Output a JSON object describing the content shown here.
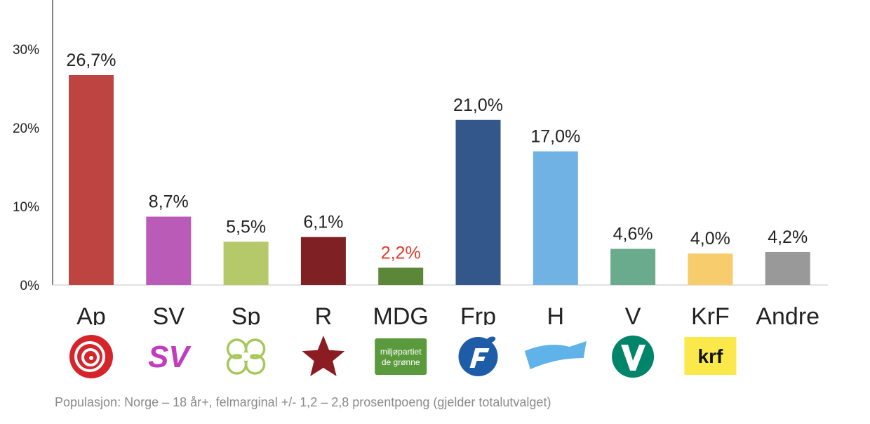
{
  "chart_data": {
    "type": "bar",
    "categories": [
      "Ap",
      "SV",
      "Sp",
      "R",
      "MDG",
      "Frp",
      "H",
      "V",
      "KrF",
      "Andre"
    ],
    "values": [
      26.7,
      8.7,
      5.5,
      6.1,
      2.2,
      21.0,
      17.0,
      4.6,
      4.0,
      4.2
    ],
    "value_labels": [
      "26,7%",
      "8,7%",
      "5,5%",
      "6,1%",
      "2,2%",
      "21,0%",
      "17,0%",
      "4,6%",
      "4,0%",
      "4,2%"
    ],
    "colors": [
      "#be4442",
      "#ba5bb7",
      "#b5c96a",
      "#7e2024",
      "#5d8738",
      "#33568b",
      "#6fb2e3",
      "#6aab8d",
      "#f6cc6c",
      "#999999"
    ],
    "label_colors": [
      "#222222",
      "#222222",
      "#222222",
      "#222222",
      "#e03b2c",
      "#222222",
      "#222222",
      "#222222",
      "#222222",
      "#222222"
    ],
    "yticks": [
      "0%",
      "10%",
      "20%",
      "30%"
    ],
    "ytick_values": [
      0,
      10,
      20,
      30
    ],
    "ylim": [
      0,
      35
    ],
    "grid": false,
    "logos": [
      "ap-rose-icon",
      "sv-logo-icon",
      "sp-clover-icon",
      "r-star-icon",
      "mdg-logo-icon",
      "frp-logo-icon",
      "h-banner-icon",
      "v-logo-icon",
      "krf-logo-icon",
      ""
    ],
    "logo_texts": {
      "sv": "SV",
      "mdg_line1": "miljøpartiet",
      "mdg_line2": "de grønne",
      "krf": "krf"
    }
  },
  "footnote": "Populasjon: Norge – 18 år+, felmarginal +/- 1,2 – 2,8 prosentpoeng (gjelder totalutvalget)"
}
